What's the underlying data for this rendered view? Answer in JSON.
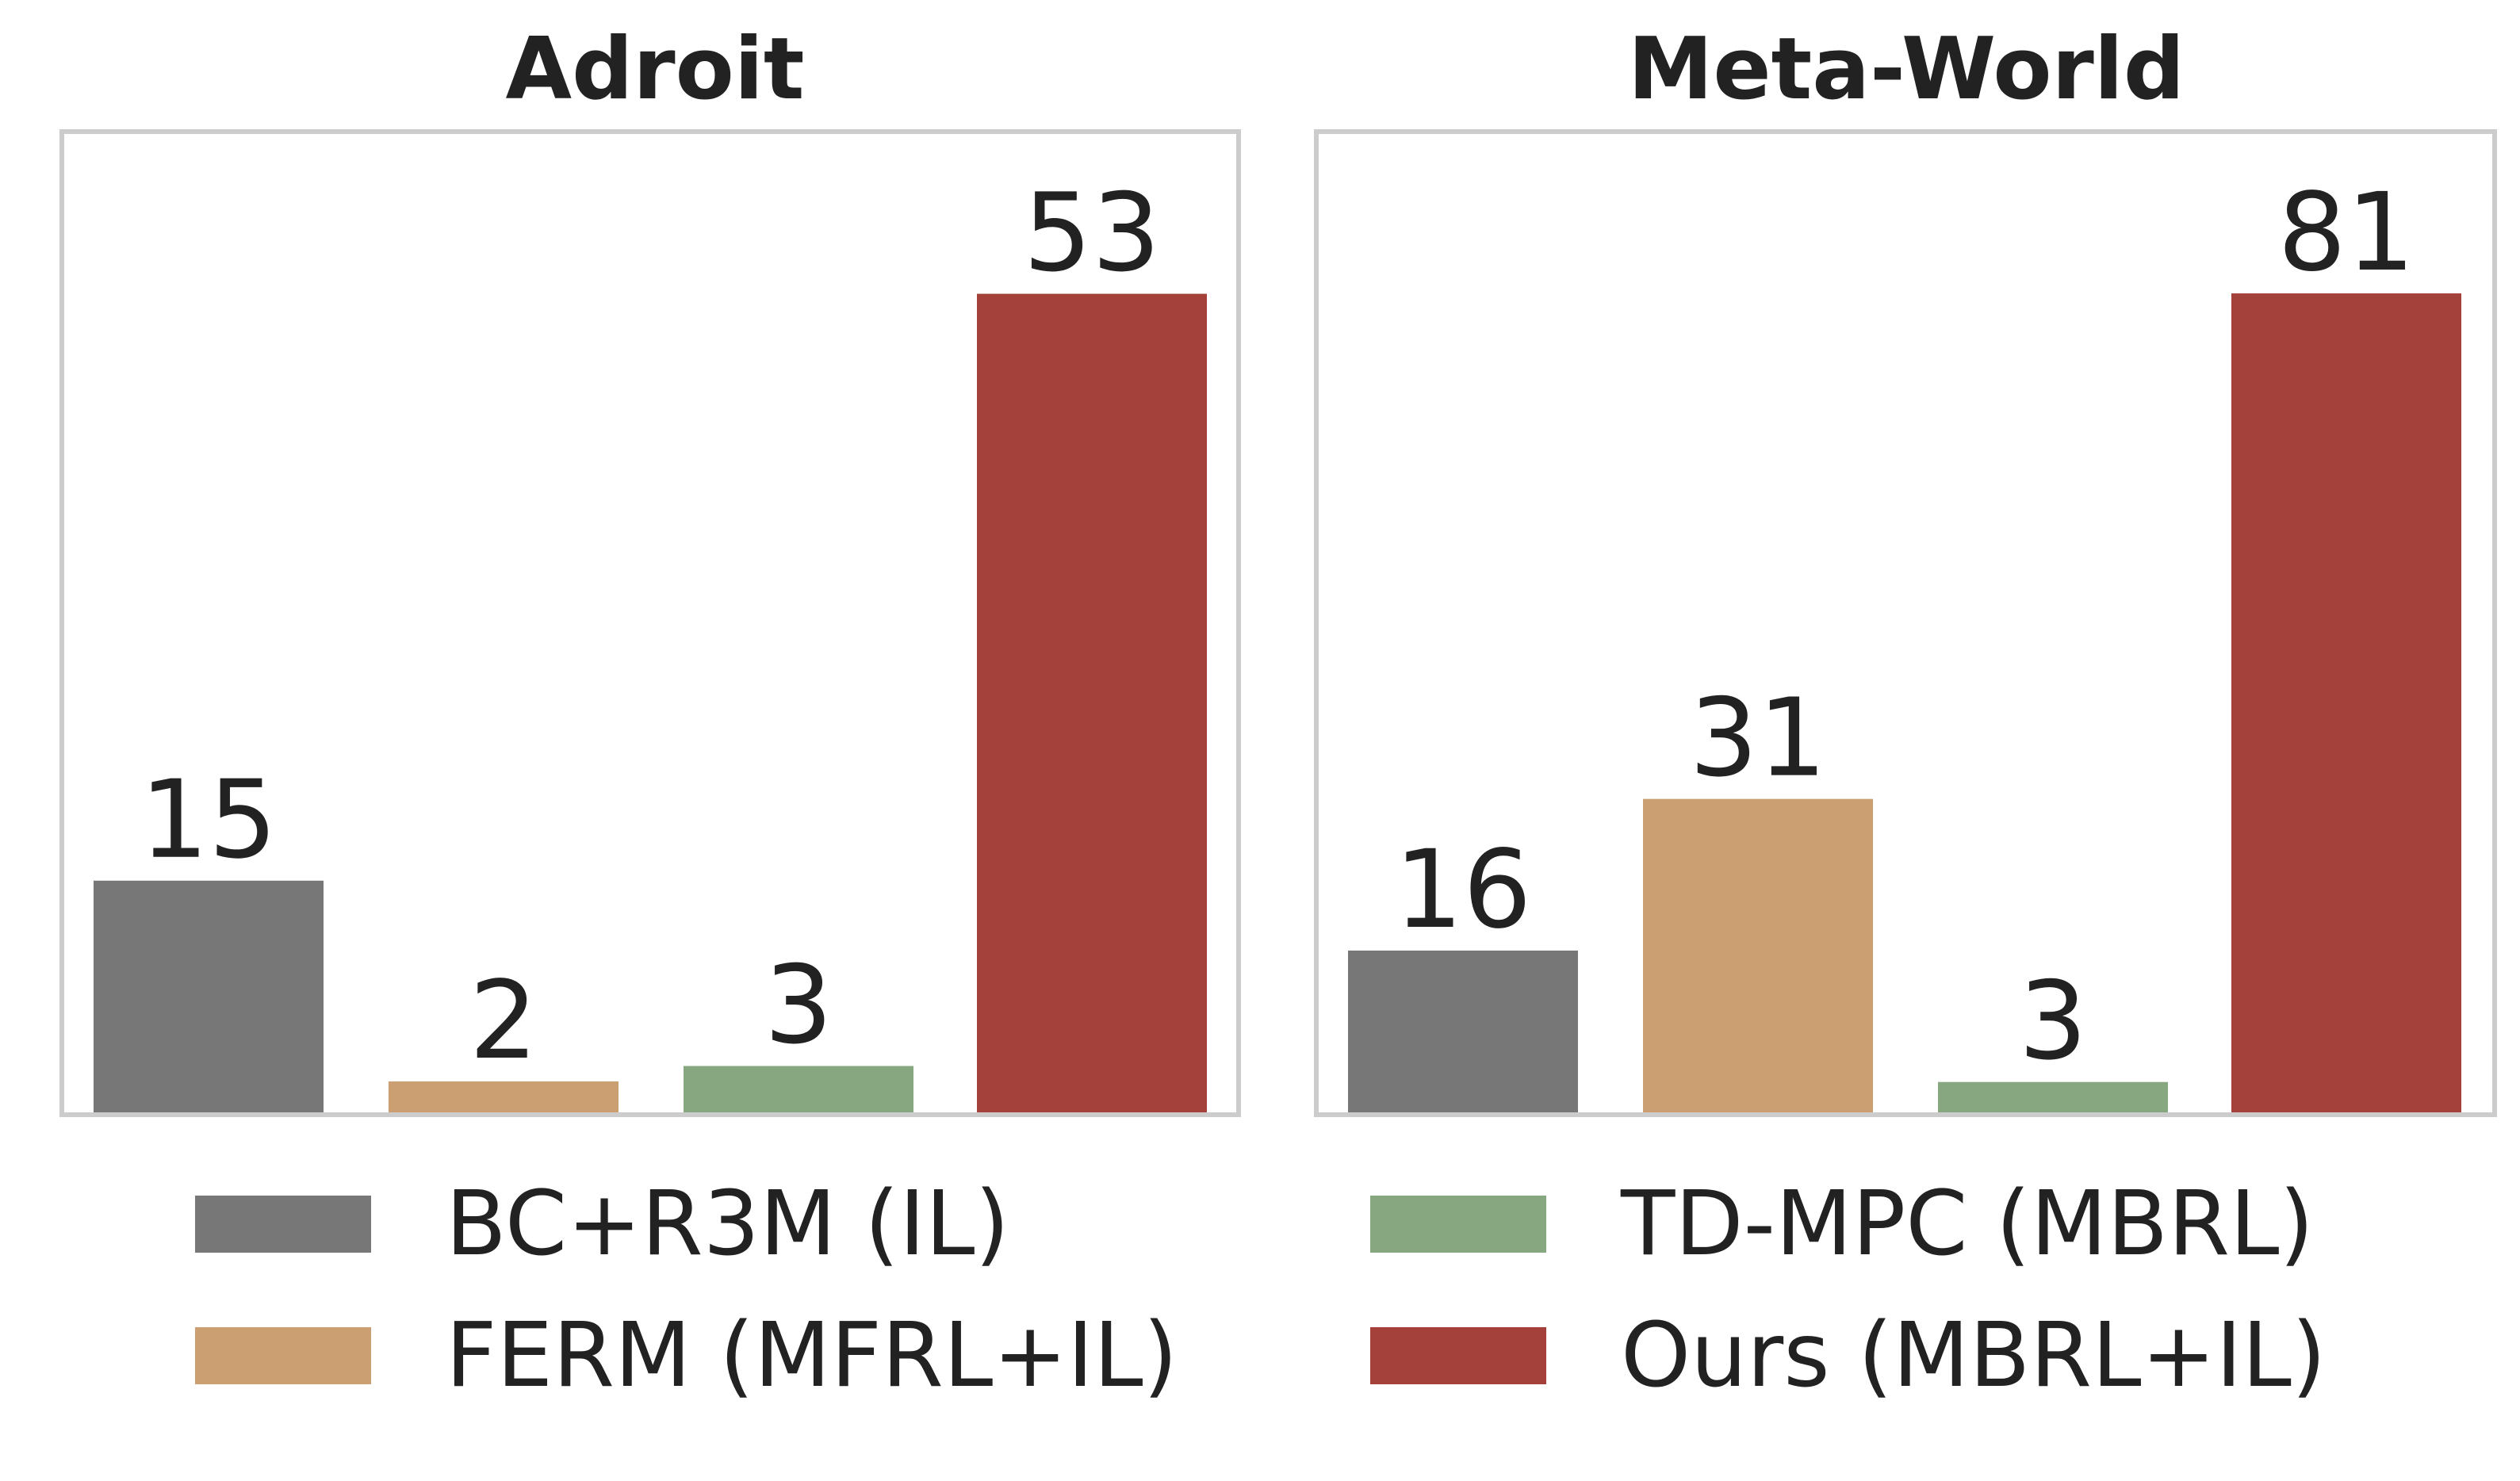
{
  "chart_data": [
    {
      "type": "bar",
      "title": "Adroit",
      "categories": [
        "BC+R3M (IL)",
        "FERM (MFRL+IL)",
        "TD-MPC (MBRL)",
        "Ours (MBRL+IL)"
      ],
      "values": [
        15,
        2,
        3,
        53
      ],
      "data_labels": [
        "15",
        "2",
        "3",
        "53"
      ],
      "ylim": [
        0,
        63.5
      ],
      "grid": false,
      "colors": [
        "#777777",
        "#cc9f73",
        "#86a77f",
        "#a5413b"
      ]
    },
    {
      "type": "bar",
      "title": "Meta-World",
      "categories": [
        "BC+R3M (IL)",
        "FERM (MFRL+IL)",
        "TD-MPC (MBRL)",
        "Ours (MBRL+IL)"
      ],
      "values": [
        16,
        31,
        3,
        81
      ],
      "data_labels": [
        "16",
        "31",
        "3",
        "81"
      ],
      "ylim": [
        0,
        97
      ],
      "grid": false,
      "colors": [
        "#777777",
        "#cc9f73",
        "#86a77f",
        "#a5413b"
      ]
    }
  ],
  "legend": {
    "placement": "bottom",
    "items": [
      {
        "label": "BC+R3M (IL)",
        "color": "#777777"
      },
      {
        "label": "FERM (MFRL+IL)",
        "color": "#cc9f73"
      },
      {
        "label": "TD-MPC (MBRL)",
        "color": "#86a77f"
      },
      {
        "label": "Ours (MBRL+IL)",
        "color": "#a5413b"
      }
    ]
  }
}
